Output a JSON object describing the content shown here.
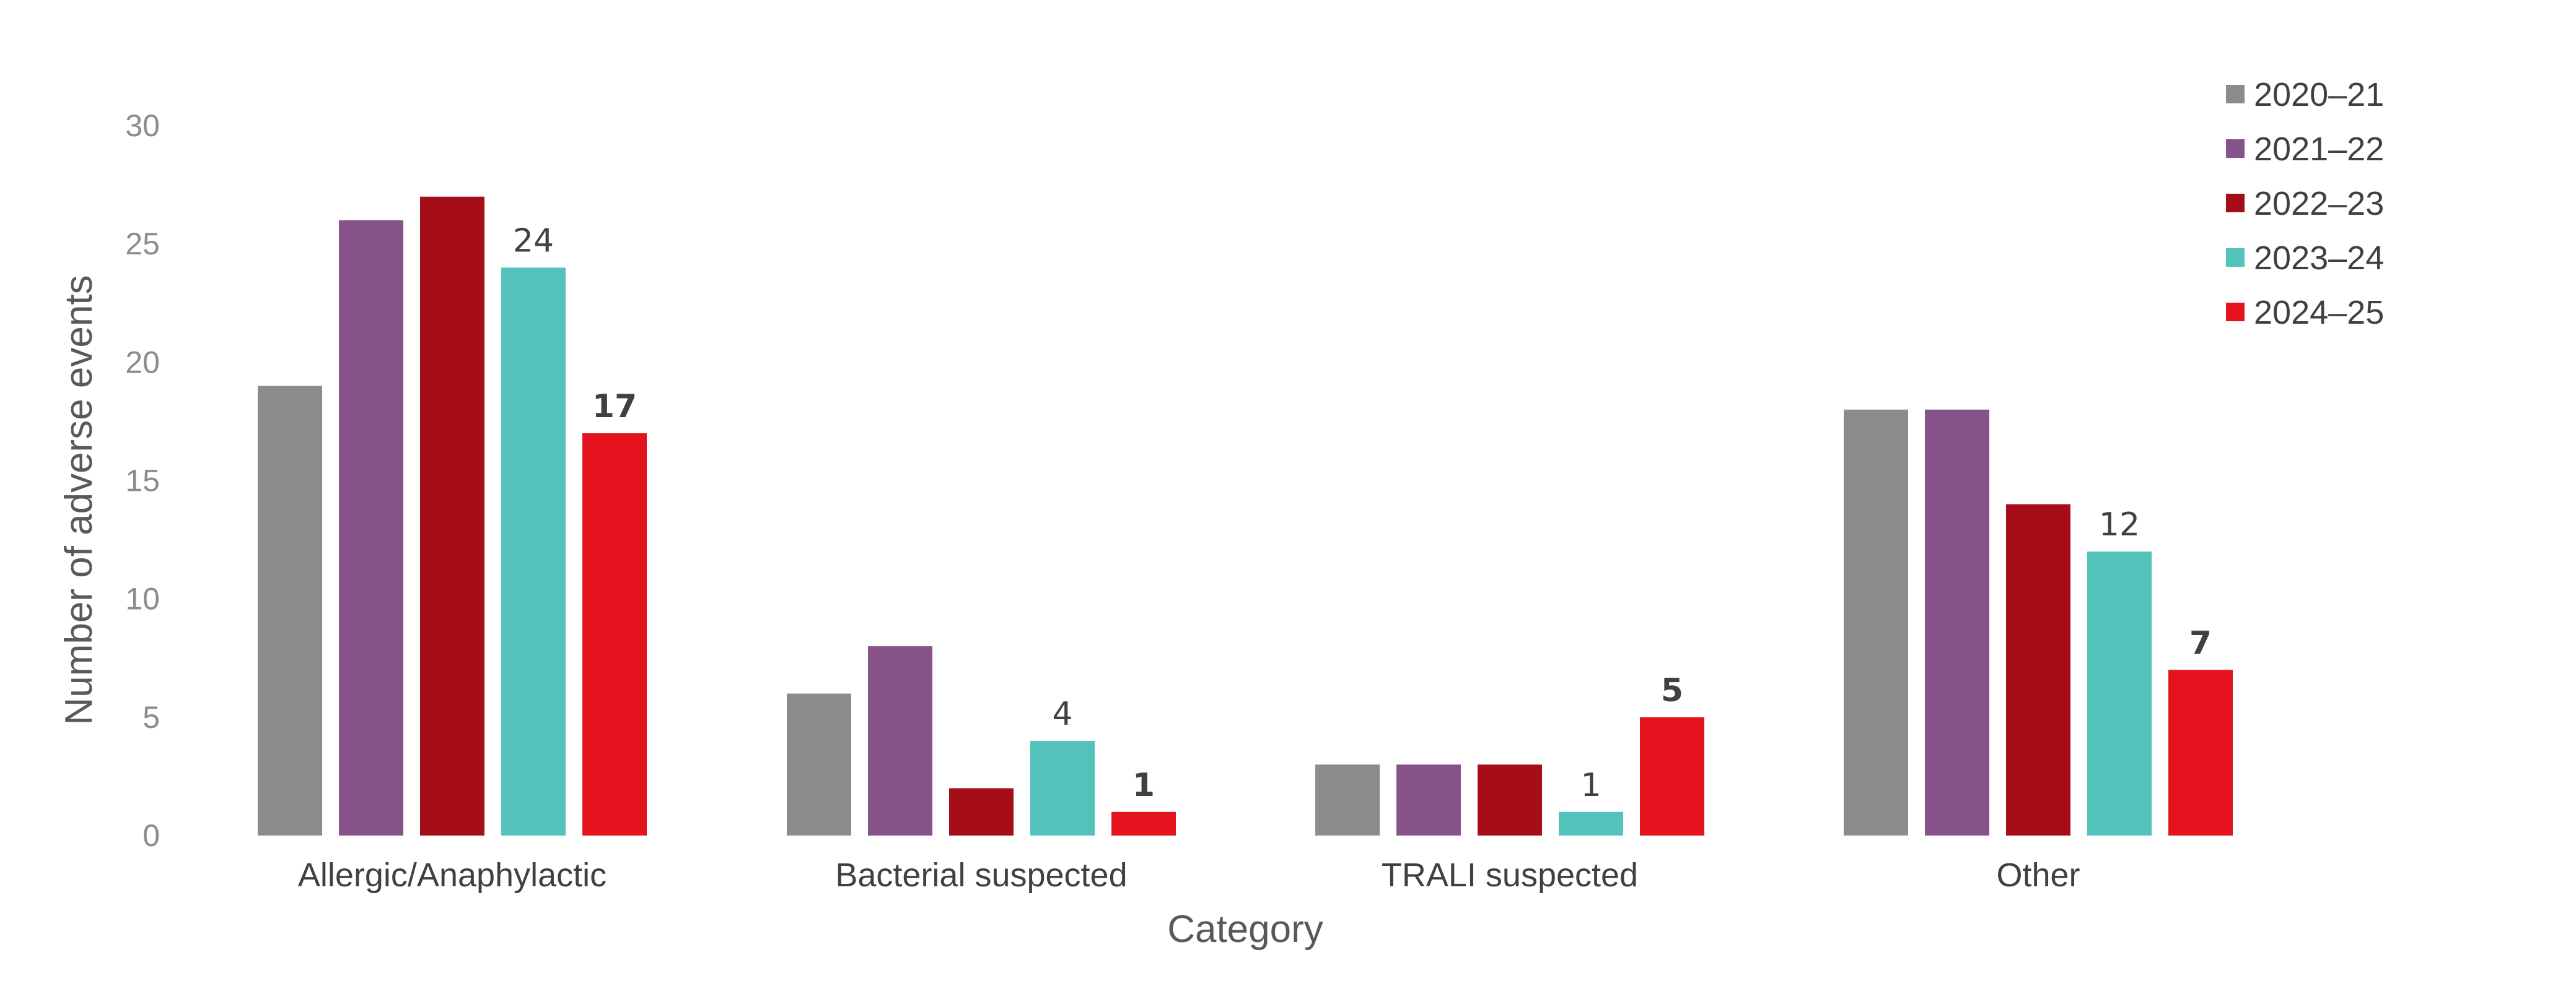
{
  "chart_data": {
    "type": "bar",
    "title": "",
    "xlabel": "Category",
    "ylabel": "Number of adverse events",
    "ylim": [
      0,
      30
    ],
    "yticks": [
      0,
      5,
      10,
      15,
      20,
      25,
      30
    ],
    "grid": false,
    "legend_position": "top-right",
    "categories": [
      "Allergic/Anaphylactic",
      "Bacterial suspected",
      "TRALI suspected",
      "Other"
    ],
    "series": [
      {
        "name": "2020–21",
        "color": "#8c8c8c",
        "values": [
          19,
          6,
          3,
          18
        ],
        "labels": [
          null,
          null,
          null,
          null
        ],
        "bold_labels": false
      },
      {
        "name": "2021–22",
        "color": "#865289",
        "values": [
          26,
          8,
          3,
          18
        ],
        "labels": [
          null,
          null,
          null,
          null
        ],
        "bold_labels": false
      },
      {
        "name": "2022–23",
        "color": "#a50d18",
        "values": [
          27,
          2,
          3,
          14
        ],
        "labels": [
          null,
          null,
          null,
          null
        ],
        "bold_labels": false
      },
      {
        "name": "2023–24",
        "color": "#53c2bb",
        "values": [
          24,
          4,
          1,
          12
        ],
        "labels": [
          "24",
          "4",
          "1",
          "12"
        ],
        "bold_labels": false
      },
      {
        "name": "2024–25",
        "color": "#e5131d",
        "values": [
          17,
          1,
          5,
          7
        ],
        "labels": [
          "17",
          "1",
          "5",
          "7"
        ],
        "bold_labels": true
      }
    ]
  }
}
